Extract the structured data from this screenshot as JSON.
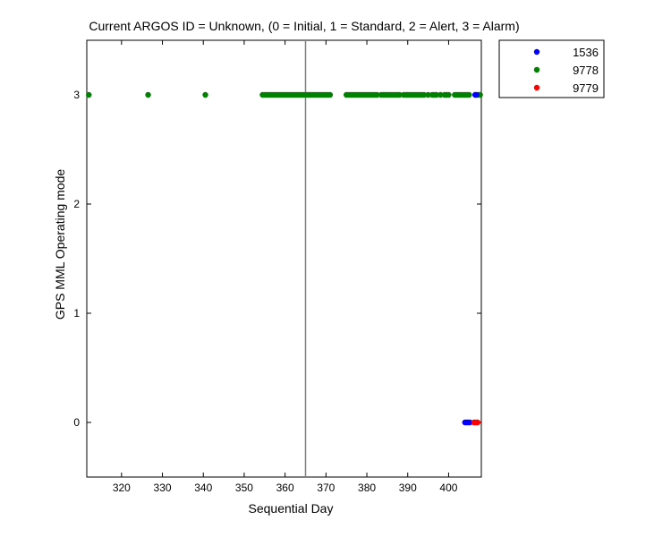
{
  "chart_data": {
    "type": "scatter",
    "title": "Current ARGOS ID = Unknown, (0 = Initial, 1 = Standard, 2 = Alert, 3 = Alarm)",
    "xlabel": "Sequential Day",
    "ylabel": "GPS MML Operating mode",
    "xlim": [
      311.5,
      408
    ],
    "ylim": [
      -0.5,
      3.5
    ],
    "x_ticks": [
      320,
      330,
      340,
      350,
      360,
      370,
      380,
      390,
      400
    ],
    "y_ticks": [
      0,
      1,
      2,
      3
    ],
    "grid": false,
    "legend_position": "outside top-right",
    "reference_line": {
      "x": 365,
      "color": "#808080"
    },
    "series": [
      {
        "name": "1536",
        "color": "#0000ff",
        "points": [
          [
            404.0,
            0
          ],
          [
            404.3,
            0
          ],
          [
            404.6,
            0
          ],
          [
            404.9,
            0
          ],
          [
            405.2,
            0
          ],
          [
            406.5,
            3
          ],
          [
            406.8,
            3
          ]
        ]
      },
      {
        "name": "9778",
        "color": "#008000",
        "points": [
          [
            312,
            3
          ],
          [
            326.5,
            3
          ],
          [
            340.5,
            3
          ],
          [
            354.5,
            3
          ],
          [
            355,
            3
          ],
          [
            355.5,
            3
          ],
          [
            356,
            3
          ],
          [
            356.5,
            3
          ],
          [
            357,
            3
          ],
          [
            357.5,
            3
          ],
          [
            358,
            3
          ],
          [
            358.5,
            3
          ],
          [
            359,
            3
          ],
          [
            359.5,
            3
          ],
          [
            360,
            3
          ],
          [
            360.5,
            3
          ],
          [
            361,
            3
          ],
          [
            361.5,
            3
          ],
          [
            362,
            3
          ],
          [
            362.5,
            3
          ],
          [
            363,
            3
          ],
          [
            363.5,
            3
          ],
          [
            364,
            3
          ],
          [
            364.5,
            3
          ],
          [
            365,
            3
          ],
          [
            365.5,
            3
          ],
          [
            366,
            3
          ],
          [
            366.5,
            3
          ],
          [
            367,
            3
          ],
          [
            367.5,
            3
          ],
          [
            368,
            3
          ],
          [
            368.5,
            3
          ],
          [
            369,
            3
          ],
          [
            369.5,
            3
          ],
          [
            370,
            3
          ],
          [
            370.5,
            3
          ],
          [
            371,
            3
          ],
          [
            375,
            3
          ],
          [
            375.5,
            3
          ],
          [
            376,
            3
          ],
          [
            376.5,
            3
          ],
          [
            377,
            3
          ],
          [
            377.5,
            3
          ],
          [
            378,
            3
          ],
          [
            378.5,
            3
          ],
          [
            379,
            3
          ],
          [
            379.5,
            3
          ],
          [
            380,
            3
          ],
          [
            380.5,
            3
          ],
          [
            381,
            3
          ],
          [
            381.5,
            3
          ],
          [
            382,
            3
          ],
          [
            382.5,
            3
          ],
          [
            383.5,
            3
          ],
          [
            384,
            3
          ],
          [
            384.5,
            3
          ],
          [
            385,
            3
          ],
          [
            385.5,
            3
          ],
          [
            386,
            3
          ],
          [
            386.5,
            3
          ],
          [
            387,
            3
          ],
          [
            387.5,
            3
          ],
          [
            388,
            3
          ],
          [
            389,
            3
          ],
          [
            389.5,
            3
          ],
          [
            390,
            3
          ],
          [
            390.5,
            3
          ],
          [
            391,
            3
          ],
          [
            391.5,
            3
          ],
          [
            392,
            3
          ],
          [
            392.5,
            3
          ],
          [
            393,
            3
          ],
          [
            393.5,
            3
          ],
          [
            394,
            3
          ],
          [
            395,
            3
          ],
          [
            396,
            3
          ],
          [
            396.5,
            3
          ],
          [
            397,
            3
          ],
          [
            398,
            3
          ],
          [
            399,
            3
          ],
          [
            399.5,
            3
          ],
          [
            400,
            3
          ],
          [
            401.5,
            3
          ],
          [
            402,
            3
          ],
          [
            402.5,
            3
          ],
          [
            403,
            3
          ],
          [
            403.5,
            3
          ],
          [
            404,
            3
          ],
          [
            404.5,
            3
          ],
          [
            405,
            3
          ],
          [
            407.3,
            3
          ],
          [
            407.7,
            3
          ]
        ]
      },
      {
        "name": "9779",
        "color": "#ff0000",
        "points": [
          [
            406.2,
            0
          ],
          [
            406.5,
            0
          ],
          [
            406.8,
            0
          ],
          [
            407.1,
            0
          ]
        ]
      }
    ]
  }
}
